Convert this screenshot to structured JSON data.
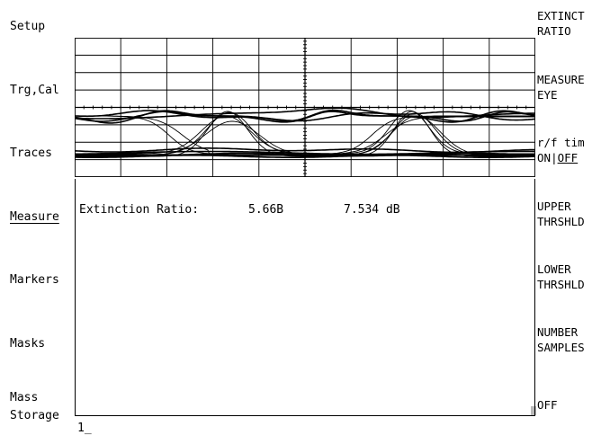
{
  "left_menu": {
    "setup": "Setup",
    "trg_cal": "Trg,Cal",
    "traces": "Traces",
    "measure": "Measure",
    "markers": "Markers",
    "masks": "Masks",
    "mass_storage_line1": "Mass",
    "mass_storage_line2": "Storage"
  },
  "softkeys": {
    "extinct_line1": "EXTINCT",
    "extinct_line2": "RATIO",
    "measure_eye_line1": "MEASURE",
    "measure_eye_line2": "EYE",
    "rf_line1": "r/f tim",
    "rf_on": "ON",
    "rf_sep": "|",
    "rf_off": "OFF",
    "upper_line1": "UPPER",
    "upper_line2": "THRSHLD",
    "lower_line1": "LOWER",
    "lower_line2": "THRSHLD",
    "samples_line1": "NUMBER",
    "samples_line2": "SAMPLES",
    "off": "OFF"
  },
  "measurement": {
    "label": "Extinction Ratio:",
    "rate": "5.66B",
    "value": "7.534 dB"
  },
  "cursor_text": "1_",
  "colors": {
    "trace": "#000000",
    "background": "#ffffff",
    "grid": "#000000"
  }
}
